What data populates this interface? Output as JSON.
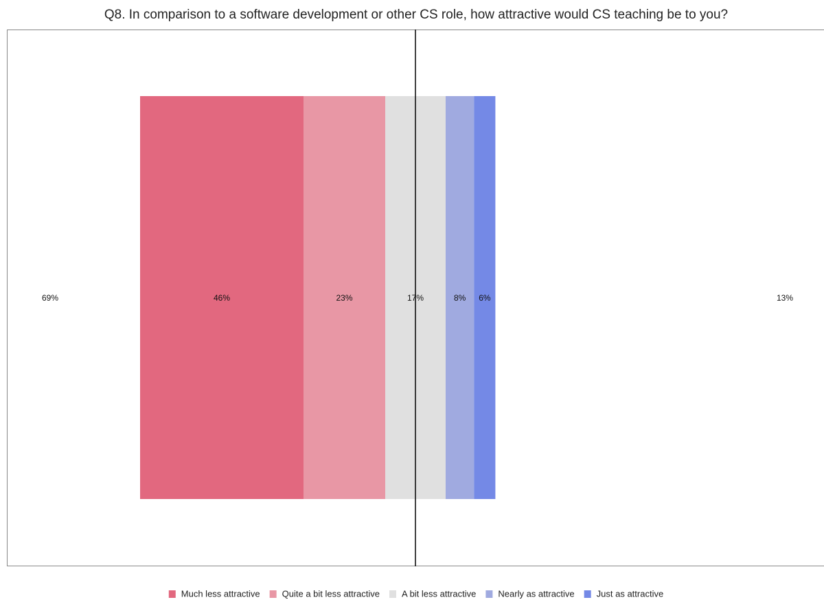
{
  "chart_data": {
    "type": "diverging_bar",
    "title": "Q8. In comparison to a software development or other CS role, how attractive would CS teaching be to you?",
    "categories": [
      null
    ],
    "series": [
      {
        "name": "Much less attractive",
        "color": "#e2687f",
        "values": [
          46
        ],
        "value_labels": [
          "46%"
        ]
      },
      {
        "name": "Quite a bit less attractive",
        "color": "#e897a5",
        "values": [
          23
        ],
        "value_labels": [
          "23%"
        ]
      },
      {
        "name": "A bit less attractive",
        "color": "#e0e0e0",
        "values": [
          17
        ],
        "value_labels": [
          "17%"
        ]
      },
      {
        "name": "Nearly as attractive",
        "color": "#a0aae0",
        "values": [
          8
        ],
        "value_labels": [
          "8%"
        ]
      },
      {
        "name": "Just as attractive",
        "color": "#7489e6",
        "values": [
          6
        ],
        "value_labels": [
          "6%"
        ]
      }
    ],
    "totals": {
      "values": [
        69,
        13
      ],
      "value_labels": [
        "69%",
        "13%"
      ]
    },
    "xlim": [
      -115,
      115
    ],
    "legend": "bottom"
  }
}
